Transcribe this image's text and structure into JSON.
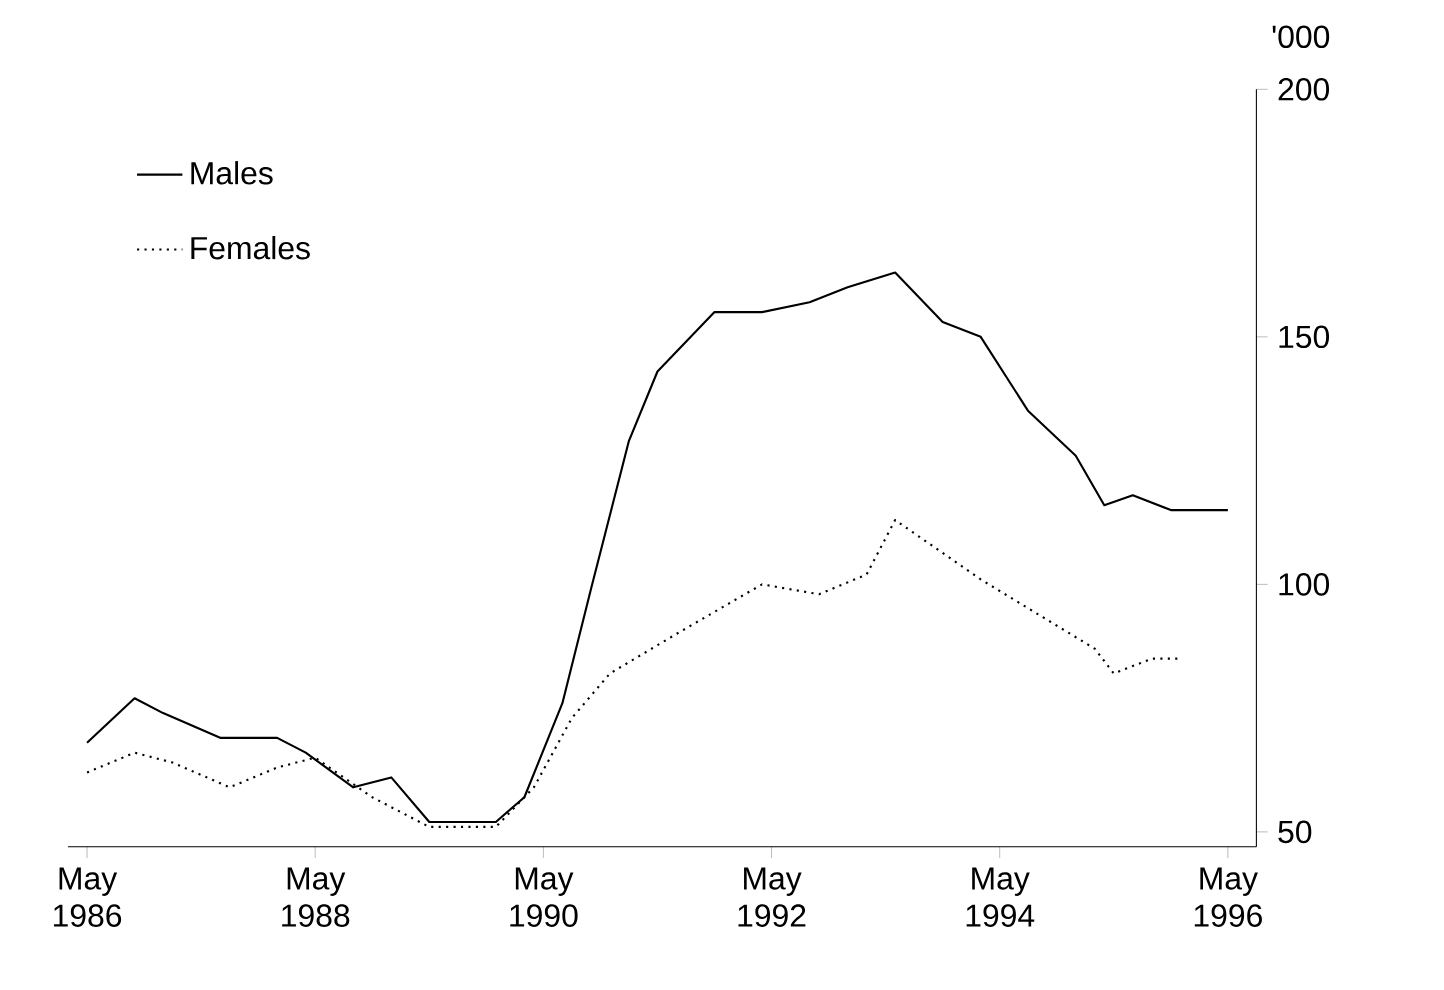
{
  "chart_data": {
    "type": "line",
    "ylabel": "'000",
    "xlim": [
      "1986-03",
      "1996-08"
    ],
    "ylim": [
      47,
      200
    ],
    "xticks": [
      {
        "value": "1986-05",
        "label": "May 1986"
      },
      {
        "value": "1988-05",
        "label": "May 1988"
      },
      {
        "value": "1990-05",
        "label": "May 1990"
      },
      {
        "value": "1992-05",
        "label": "May 1992"
      },
      {
        "value": "1994-05",
        "label": "May 1994"
      },
      {
        "value": "1996-05",
        "label": "May 1996"
      }
    ],
    "yticks": [
      50,
      100,
      150,
      200
    ],
    "legend": "top left",
    "grid": false,
    "marker": "none",
    "series": [
      {
        "name": "Males",
        "color": "#000000",
        "line_style": "solid",
        "x": [
          "1986-05",
          "1986-10",
          "1987-01",
          "1987-07",
          "1988-01",
          "1988-04",
          "1988-09",
          "1989-01",
          "1989-05",
          "1989-12",
          "1990-03",
          "1990-07",
          "1990-10",
          "1991-02",
          "1991-05",
          "1991-11",
          "1992-04",
          "1992-09",
          "1993-01",
          "1993-06",
          "1993-11",
          "1994-03",
          "1994-08",
          "1995-01",
          "1995-04",
          "1995-07",
          "1995-11",
          "1996-05"
        ],
        "values": [
          68,
          77,
          74,
          69,
          69,
          66,
          59,
          61,
          52,
          52,
          57,
          76,
          99,
          129,
          143,
          155,
          155,
          157,
          160,
          163,
          153,
          150,
          135,
          126,
          116,
          118,
          115,
          115
        ]
      },
      {
        "name": "Females",
        "color": "#000000",
        "line_style": "dotted",
        "x": [
          "1986-05",
          "1986-10",
          "1987-02",
          "1987-08",
          "1988-01",
          "1988-05",
          "1988-11",
          "1989-05",
          "1989-12",
          "1990-04",
          "1990-08",
          "1990-12",
          "1991-07",
          "1992-04",
          "1992-10",
          "1993-03",
          "1993-06",
          "1994-03",
          "1995-03",
          "1995-05",
          "1995-09",
          "1995-12"
        ],
        "values": [
          62,
          66,
          64,
          59,
          63,
          65,
          57,
          51,
          51,
          59,
          73,
          82,
          90,
          100,
          98,
          102,
          113,
          101,
          87,
          82,
          85,
          85
        ]
      }
    ]
  }
}
